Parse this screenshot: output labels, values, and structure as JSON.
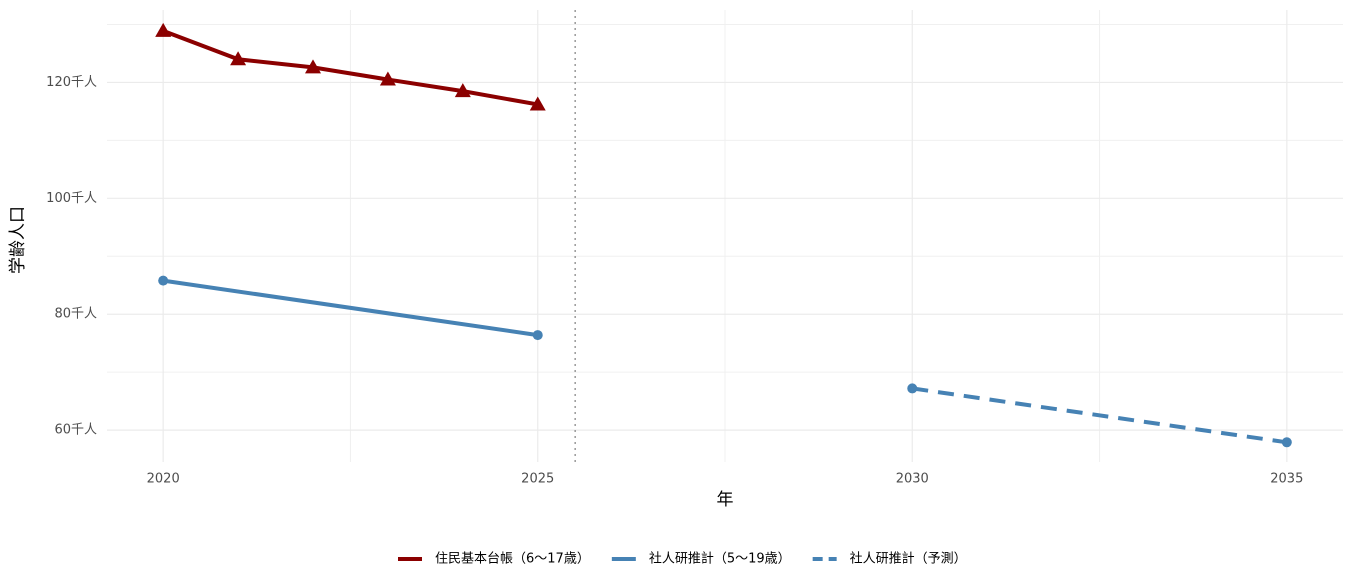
{
  "chart_data": {
    "type": "line",
    "x_label": "年",
    "y_label": "学齢人口",
    "xlim": [
      2019.25,
      2035.75
    ],
    "xticks": [
      2020,
      2025,
      2030,
      2035
    ],
    "ylim": [
      54.5,
      132.5
    ],
    "yticks": [
      {
        "value": 60,
        "label": "60千人"
      },
      {
        "value": 80,
        "label": "80千人"
      },
      {
        "value": 100,
        "label": "100千人"
      },
      {
        "value": 120,
        "label": "120千人"
      }
    ],
    "grid": true,
    "legend": "bottom",
    "reference_line": {
      "x": 2025.5,
      "color": "#999999",
      "style": "dotted"
    },
    "series": [
      {
        "name": "住民基本台帳（6〜17歳）",
        "color": "#8b0000",
        "style": "solid",
        "marker": "triangle",
        "x": [
          2020,
          2021,
          2022,
          2023,
          2024,
          2025
        ],
        "values": [
          128.9,
          124.0,
          122.6,
          120.5,
          118.5,
          116.2
        ]
      },
      {
        "name": "社人研推計（5〜19歳）",
        "color": "#4682b4",
        "style": "solid",
        "marker": "circle",
        "x": [
          2020,
          2025
        ],
        "values": [
          85.8,
          76.4
        ]
      },
      {
        "name": "社人研推計（予測）",
        "color": "#4682b4",
        "style": "dashed",
        "marker": "circle",
        "x": [
          2030,
          2035
        ],
        "values": [
          67.2,
          57.9
        ]
      }
    ]
  }
}
